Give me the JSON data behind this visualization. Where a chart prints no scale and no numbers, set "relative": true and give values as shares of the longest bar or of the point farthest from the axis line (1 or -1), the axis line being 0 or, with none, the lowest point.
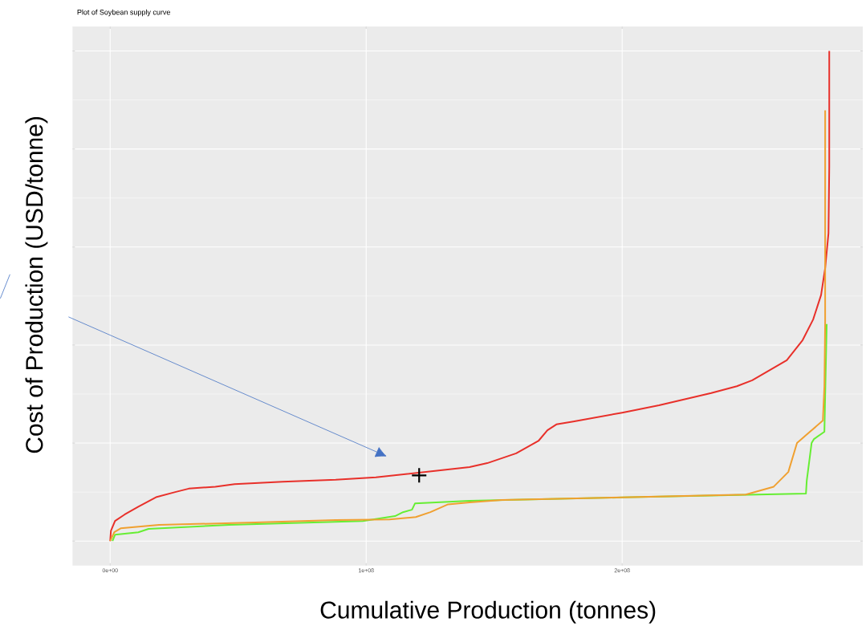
{
  "chart_data": {
    "type": "line",
    "title": "Plot of Soybean supply curve",
    "xlabel": "Cumulative Production (tonnes)",
    "ylabel": "Cost of Production (USD/tonne)",
    "relative": true,
    "grid": true,
    "xlim": [
      -14700000.0,
      294000000.0
    ],
    "xticks": [
      {
        "value": 0,
        "label": "0e+00"
      },
      {
        "value": 100000000.0,
        "label": "1e+08"
      },
      {
        "value": 200000000.0,
        "label": "2e+08"
      }
    ],
    "series": [
      {
        "color": "#e8302a",
        "x": [
          0,
          300000.0,
          1900000.0,
          5600000.0,
          11000000.0,
          18200000.0,
          25400000.0,
          30700000.0,
          41100000.0,
          48600000.0,
          67400000.0,
          88100000.0,
          103800000.0,
          140400000.0,
          147300000.0,
          158600000.0,
          167400000.0,
          170800000.0,
          174300000.0,
          180900000.0,
          200000000.0,
          214400000.0,
          234800000.0,
          244800000.0,
          250800000.0,
          264300000.0,
          270500000.0,
          274600000.0,
          277700000.0,
          279300000.0,
          280600000.0,
          280900000.0,
          280900000.0
        ],
        "values": [
          0,
          0.021,
          0.041,
          0.054,
          0.07,
          0.09,
          0.1,
          0.107,
          0.111,
          0.116,
          0.121,
          0.125,
          0.13,
          0.151,
          0.159,
          0.179,
          0.205,
          0.226,
          0.238,
          0.244,
          0.262,
          0.277,
          0.302,
          0.316,
          0.328,
          0.369,
          0.41,
          0.452,
          0.502,
          0.557,
          0.628,
          0.764,
          1.0
        ]
      },
      {
        "color": "#66ee33",
        "x": [
          900000.0,
          1900000.0,
          11000000.0,
          15000000.0,
          46400000.0,
          98700000.0,
          111300000.0,
          114400000.0,
          117900000.0,
          119100000.0,
          140400000.0,
          200000000.0,
          271800000.0,
          272100000.0,
          274000000.0,
          274900000.0,
          279000000.0,
          279900000.0
        ],
        "values": [
          0,
          0.013,
          0.018,
          0.025,
          0.033,
          0.041,
          0.051,
          0.059,
          0.064,
          0.077,
          0.082,
          0.089,
          0.097,
          0.123,
          0.2,
          0.208,
          0.223,
          0.443
        ]
      },
      {
        "color": "#f0a030",
        "x": [
          0,
          1600000.0,
          4100000.0,
          19100000.0,
          56700000.0,
          88100000.0,
          109100000.0,
          119400000.0,
          125100000.0,
          132000000.0,
          140400000.0,
          153000000.0,
          200000000.0,
          248300000.0,
          259200000.0,
          264900000.0,
          268300000.0,
          272700000.0,
          278400000.0,
          279000000.0,
          279300000.0,
          279300000.0
        ],
        "values": [
          0,
          0.018,
          0.026,
          0.033,
          0.038,
          0.043,
          0.044,
          0.049,
          0.059,
          0.075,
          0.079,
          0.084,
          0.089,
          0.095,
          0.111,
          0.141,
          0.2,
          0.22,
          0.246,
          0.316,
          0.448,
          0.879
        ]
      },
      {
        "type": "scatter",
        "marker": "cross",
        "color": "#000000",
        "x": [
          120700000.0
        ],
        "values": [
          0.134
        ]
      }
    ]
  }
}
